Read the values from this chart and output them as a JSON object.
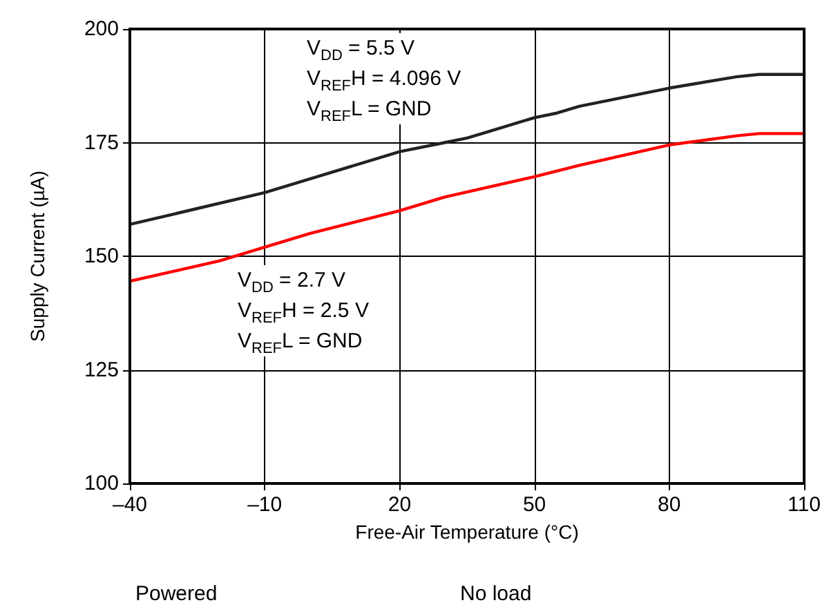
{
  "chart_data": {
    "type": "line",
    "xlabel": "Free-Air Temperature (°C)",
    "ylabel": "Supply Current (µA)",
    "x": [
      -40,
      -10,
      0,
      20,
      30,
      35,
      40,
      50,
      55,
      60,
      80,
      95,
      100,
      110
    ],
    "series": [
      {
        "color": "#222222",
        "values": [
          157,
          164,
          167,
          173,
          175,
          176,
          177.5,
          180.5,
          181.5,
          183,
          187,
          189.5,
          190,
          190
        ]
      },
      {
        "color": "#ff0000",
        "x": [
          -40,
          -20,
          -10,
          0,
          20,
          30,
          50,
          60,
          80,
          95,
          100,
          110
        ],
        "values": [
          144.5,
          149,
          152,
          155,
          160,
          163,
          167.5,
          170,
          174.5,
          176.5,
          177,
          177
        ]
      }
    ],
    "xlim": [
      -40,
      110
    ],
    "xticks": [
      {
        "value": -40,
        "label": "–40"
      },
      {
        "value": -10,
        "label": "–10"
      },
      20,
      50,
      80,
      110
    ],
    "ylim": [
      100,
      200
    ],
    "yticks": [
      100,
      125,
      150,
      175,
      200
    ],
    "grid": true,
    "marker": "none",
    "line_style": "solid",
    "annotations": [
      "V$_{DD}$ = 5.5 V\nV$_{REF}$H = 4.096 V\nV$_{REF}$L = GND",
      "V$_{DD}$ = 2.7 V\nV$_{REF}$H = 2.5 V\nV$_{REF}$L = GND",
      "Powered",
      "No load"
    ]
  }
}
